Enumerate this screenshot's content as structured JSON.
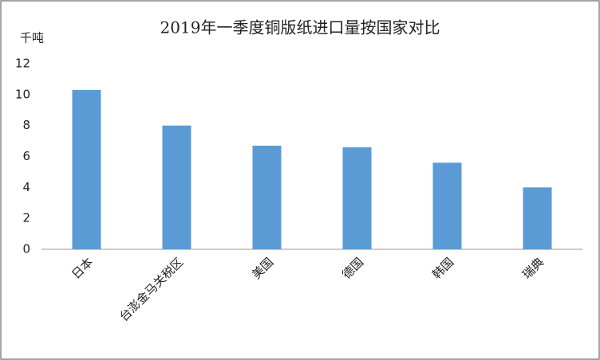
{
  "chart_data": {
    "type": "bar",
    "title": "2019年一季度铜版纸进口量按国家对比",
    "y_label": "千吨",
    "categories": [
      "日本",
      "台澎金马关税区",
      "美国",
      "德国",
      "韩国",
      "瑞典"
    ],
    "values": [
      10.3,
      8.0,
      6.7,
      6.6,
      5.6,
      4.0
    ],
    "color": "#5b9bd5",
    "ylim": [
      0,
      12
    ],
    "yticks": [
      0,
      2,
      4,
      6,
      8,
      10,
      12
    ],
    "grid": false
  }
}
